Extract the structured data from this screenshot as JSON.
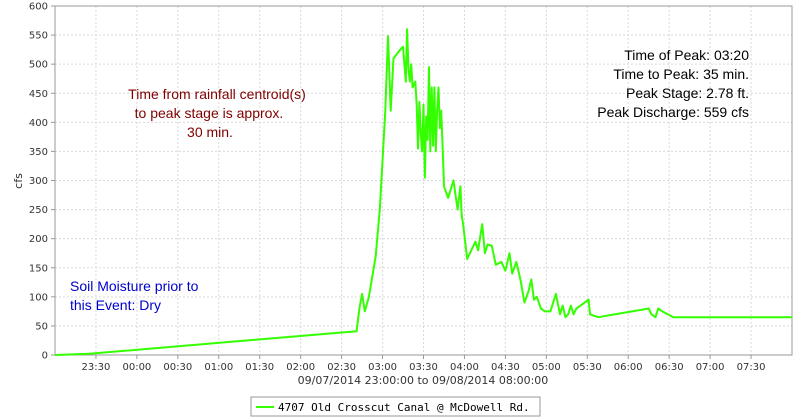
{
  "chart_data": {
    "type": "line",
    "title": "",
    "xlabel": "09/07/2014 23:00:00 to 09/08/2014 08:00:00",
    "ylabel": "cfs",
    "xlim": [
      "23:00",
      "08:00"
    ],
    "ylim": [
      0,
      600
    ],
    "yticks": [
      "0",
      "50",
      "100",
      "150",
      "200",
      "250",
      "300",
      "350",
      "400",
      "450",
      "500",
      "550",
      "600"
    ],
    "xticks": [
      {
        "t": "23:30",
        "label": "23:30"
      },
      {
        "t": "00:00",
        "label": "00:00"
      },
      {
        "t": "00:30",
        "label": "00:30"
      },
      {
        "t": "01:00",
        "label": "01:00"
      },
      {
        "t": "01:30",
        "label": "01:30"
      },
      {
        "t": "02:00",
        "label": "02:00"
      },
      {
        "t": "02:30",
        "label": "02:30"
      },
      {
        "t": "03:00",
        "label": "03:00"
      },
      {
        "t": "03:30",
        "label": "03:30"
      },
      {
        "t": "04:00",
        "label": "04:00"
      },
      {
        "t": "04:30",
        "label": "04:30"
      },
      {
        "t": "05:00",
        "label": "05:00"
      },
      {
        "t": "05:30",
        "label": "05:30"
      },
      {
        "t": "06:00",
        "label": "06:00"
      },
      {
        "t": "06:30",
        "label": "06:30"
      },
      {
        "t": "07:00",
        "label": "07:00"
      },
      {
        "t": "07:30",
        "label": "07:30"
      }
    ],
    "grid": true,
    "legend_position": "bottom-center",
    "series": [
      {
        "name": "4707 Old Crosscut Canal @ McDowell Rd.",
        "color": "#33ff00",
        "x": [
          "23:00",
          "23:25",
          "02:41",
          "02:43",
          "02:45",
          "02:47",
          "02:50",
          "02:55",
          "02:58",
          "03:02",
          "03:04",
          "03:06",
          "03:08",
          "03:13",
          "03:15",
          "03:17",
          "03:18",
          "03:19",
          "03:20",
          "03:21",
          "03:22",
          "03:24",
          "03:25",
          "03:26",
          "03:27",
          "03:28",
          "03:29",
          "03:30",
          "03:31",
          "03:32",
          "03:33",
          "03:34",
          "03:35",
          "03:36",
          "03:37",
          "03:38",
          "03:39",
          "03:40",
          "03:41",
          "03:42",
          "03:43",
          "03:44",
          "03:45",
          "03:48",
          "03:52",
          "03:55",
          "03:57",
          "03:58",
          "03:59",
          "04:02",
          "04:05",
          "04:08",
          "04:10",
          "04:13",
          "04:15",
          "04:17",
          "04:20",
          "04:23",
          "04:27",
          "04:30",
          "04:33",
          "04:35",
          "04:38",
          "04:41",
          "04:44",
          "04:47",
          "04:49",
          "04:51",
          "04:53",
          "04:56",
          "04:59",
          "05:03",
          "05:07",
          "05:10",
          "05:12",
          "05:14",
          "05:16",
          "05:18",
          "05:20",
          "05:22",
          "05:25",
          "05:31",
          "05:32",
          "05:38",
          "06:15",
          "06:17",
          "06:20",
          "06:22",
          "06:25",
          "06:33",
          "08:00"
        ],
        "values": [
          0,
          2,
          41,
          80,
          105,
          75,
          100,
          170,
          250,
          420,
          548,
          420,
          510,
          525,
          530,
          470,
          560,
          490,
          470,
          500,
          460,
          470,
          430,
          355,
          435,
          380,
          350,
          430,
          305,
          410,
          370,
          495,
          350,
          460,
          360,
          460,
          350,
          420,
          460,
          390,
          420,
          360,
          290,
          270,
          300,
          250,
          290,
          240,
          225,
          165,
          180,
          195,
          180,
          225,
          175,
          190,
          188,
          155,
          160,
          145,
          175,
          140,
          160,
          130,
          90,
          110,
          130,
          95,
          100,
          80,
          75,
          75,
          105,
          70,
          85,
          65,
          70,
          85,
          70,
          80,
          85,
          95,
          70,
          65,
          80,
          70,
          65,
          80,
          75,
          65,
          65
        ]
      }
    ],
    "annotations": {
      "rain_line1": "Time from rainfall centroid(s)",
      "rain_line2": "to peak stage is approx.",
      "rain_line3": "30 min.",
      "peak_time": "Time of Peak: 03:20",
      "time_to_peak": "Time to Peak: 35 min.",
      "peak_stage": "Peak Stage: 2.78 ft.",
      "peak_discharge": "Peak Discharge: 559 cfs",
      "soil_line1": "Soil Moisture prior to",
      "soil_line2": "this Event: Dry"
    },
    "colors": {
      "rain_text": "#800000",
      "peak_text": "#000000",
      "soil_text": "#0000cc",
      "grid": "#d9d9d9",
      "axis": "#999999"
    }
  }
}
